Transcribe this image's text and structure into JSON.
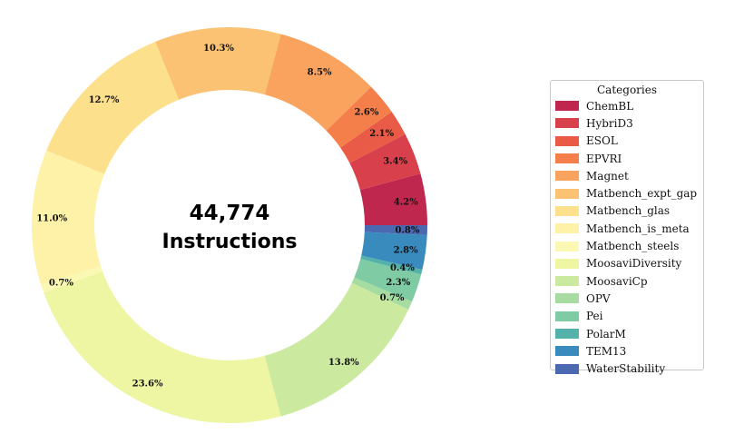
{
  "chart_data": {
    "type": "pie",
    "style": "donut",
    "center_text": [
      "44,774",
      "Instructions"
    ],
    "legend": {
      "title": "Categories",
      "placement": "right"
    },
    "slices": [
      {
        "label": "ChemBL",
        "value": 4.2,
        "display": "4.2%",
        "color": "#c0274f"
      },
      {
        "label": "HybriD3",
        "value": 3.4,
        "display": "3.4%",
        "color": "#d8404c"
      },
      {
        "label": "ESOL",
        "value": 2.1,
        "display": "2.1%",
        "color": "#e95b46"
      },
      {
        "label": "EPVRI",
        "value": 2.6,
        "display": "2.6%",
        "color": "#f57f4b"
      },
      {
        "label": "Magnet",
        "value": 8.5,
        "display": "8.5%",
        "color": "#f9a35f"
      },
      {
        "label": "Matbench_expt_gap",
        "value": 10.3,
        "display": "10.3%",
        "color": "#fcc273"
      },
      {
        "label": "Matbench_glas",
        "value": 12.7,
        "display": "12.7%",
        "color": "#fde08c"
      },
      {
        "label": "Matbench_is_meta",
        "value": 11.0,
        "display": "11.0%",
        "color": "#fef2a8"
      },
      {
        "label": "Matbench_steels",
        "value": 0.7,
        "display": "0.7%",
        "color": "#fbf8b3"
      },
      {
        "label": "MoosaviDiversity",
        "value": 23.6,
        "display": "23.6%",
        "color": "#eef6a4"
      },
      {
        "label": "MoosaviCp",
        "value": 13.8,
        "display": "13.8%",
        "color": "#cbe99f"
      },
      {
        "label": "OPV",
        "value": 0.7,
        "display": "0.7%",
        "color": "#a6dba2"
      },
      {
        "label": "Pei",
        "value": 2.3,
        "display": "2.3%",
        "color": "#7ecba4"
      },
      {
        "label": "PolarM",
        "value": 0.4,
        "display": "0.4%",
        "color": "#54b2aa"
      },
      {
        "label": "TEM13",
        "value": 2.8,
        "display": "2.8%",
        "color": "#3a8bbd"
      },
      {
        "label": "WaterStability",
        "value": 0.8,
        "display": "0.8%",
        "color": "#4a69b0"
      }
    ]
  }
}
